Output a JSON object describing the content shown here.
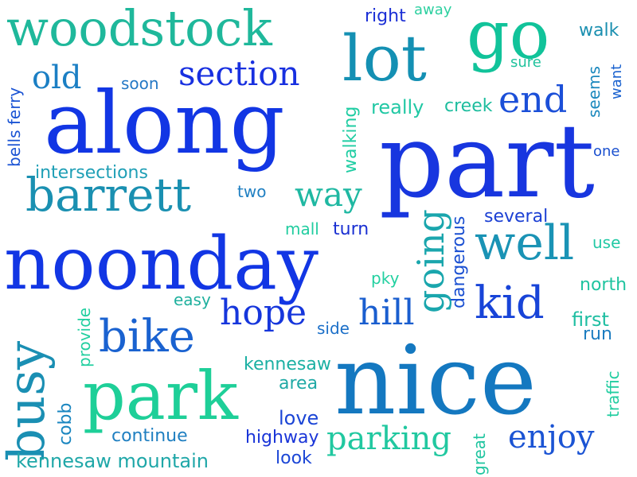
{
  "words": {
    "woodstock": {
      "text": "woodstock",
      "color": "#1fb89b"
    },
    "go": {
      "text": "go",
      "color": "#11c39a"
    },
    "lot": {
      "text": "lot",
      "color": "#1490b3"
    },
    "right": {
      "text": "right",
      "color": "#1b2fd6"
    },
    "away": {
      "text": "away",
      "color": "#2dd0a0"
    },
    "walk": {
      "text": "walk",
      "color": "#1a8fb0"
    },
    "old": {
      "text": "old",
      "color": "#1b7fc4"
    },
    "soon": {
      "text": "soon",
      "color": "#2478c5"
    },
    "section": {
      "text": "section",
      "color": "#1830e0"
    },
    "sure": {
      "text": "sure",
      "color": "#1fc29c"
    },
    "seems": {
      "text": "seems",
      "color": "#1b88bd"
    },
    "want": {
      "text": "want",
      "color": "#1a62cf"
    },
    "along": {
      "text": "along",
      "color": "#1236e4"
    },
    "really": {
      "text": "really",
      "color": "#21c8a4"
    },
    "creek": {
      "text": "creek",
      "color": "#1dbd9e"
    },
    "end": {
      "text": "end",
      "color": "#1b4fd8"
    },
    "bells_ferry": {
      "text": "bells ferry",
      "color": "#1b54d4"
    },
    "walking": {
      "text": "walking",
      "color": "#20cda3"
    },
    "part": {
      "text": "part",
      "color": "#1836df"
    },
    "one": {
      "text": "one",
      "color": "#1b50cf"
    },
    "intersections": {
      "text": "intersections",
      "color": "#1f9fb6"
    },
    "two": {
      "text": "two",
      "color": "#1f7fc2"
    },
    "barrett": {
      "text": "barrett",
      "color": "#1a90b1"
    },
    "way": {
      "text": "way",
      "color": "#1fb8a2"
    },
    "several": {
      "text": "several",
      "color": "#1c40d4"
    },
    "mall": {
      "text": "mall",
      "color": "#22cda0"
    },
    "turn": {
      "text": "turn",
      "color": "#1a30d2"
    },
    "going": {
      "text": "going",
      "color": "#1aa6ad"
    },
    "dangerous": {
      "text": "dangerous",
      "color": "#1b50d2"
    },
    "well": {
      "text": "well",
      "color": "#1a93b5"
    },
    "use": {
      "text": "use",
      "color": "#22c9a5"
    },
    "noonday": {
      "text": "noonday",
      "color": "#1236e4"
    },
    "pky": {
      "text": "pky",
      "color": "#22d0a0"
    },
    "north": {
      "text": "north",
      "color": "#20c4a0"
    },
    "easy": {
      "text": "easy",
      "color": "#1fb09e"
    },
    "hope": {
      "text": "hope",
      "color": "#1636dc"
    },
    "provide": {
      "text": "provide",
      "color": "#22cfa0"
    },
    "side": {
      "text": "side",
      "color": "#1b6fc8"
    },
    "hill": {
      "text": "hill",
      "color": "#1a5ecf"
    },
    "kid": {
      "text": "kid",
      "color": "#1844d8"
    },
    "first": {
      "text": "first",
      "color": "#1fbea2"
    },
    "run": {
      "text": "run",
      "color": "#1c7cc0"
    },
    "bike": {
      "text": "bike",
      "color": "#1a62d0"
    },
    "busy": {
      "text": "busy",
      "color": "#1a8fb3"
    },
    "kennesaw": {
      "text": "kennesaw",
      "color": "#1bb0a3"
    },
    "nice": {
      "text": "nice",
      "color": "#1478c0"
    },
    "traffic": {
      "text": "traffic",
      "color": "#22cda0"
    },
    "area": {
      "text": "area",
      "color": "#1fa9a5"
    },
    "park": {
      "text": "park",
      "color": "#1ecf98"
    },
    "cobb": {
      "text": "cobb",
      "color": "#1a86c0"
    },
    "love": {
      "text": "love",
      "color": "#1b45d6"
    },
    "continue": {
      "text": "continue",
      "color": "#1f7fc1"
    },
    "highway": {
      "text": "highway",
      "color": "#1a35d8"
    },
    "parking": {
      "text": "parking",
      "color": "#21c8a0"
    },
    "great": {
      "text": "great",
      "color": "#20c5a0"
    },
    "enjoy": {
      "text": "enjoy",
      "color": "#1b54d4"
    },
    "kennesaw_mountain": {
      "text": "kennesaw mountain",
      "color": "#1fa7a8"
    },
    "look": {
      "text": "look",
      "color": "#1b46d6"
    }
  }
}
